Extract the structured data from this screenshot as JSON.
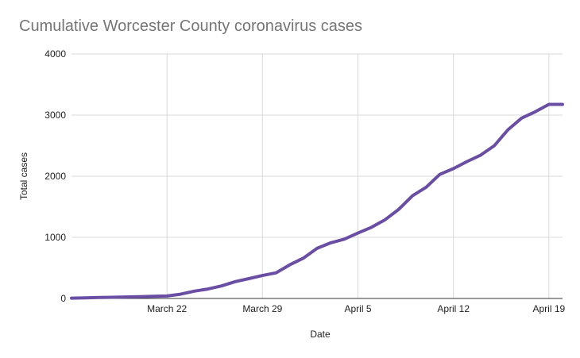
{
  "chart_data": {
    "type": "line",
    "title": "Cumulative Worcester County coronavirus cases",
    "xlabel": "Date",
    "ylabel": "Total cases",
    "ylim": [
      0,
      4000
    ],
    "y_ticks": [
      0,
      1000,
      2000,
      3000,
      4000
    ],
    "x_tick_labels": [
      "March 22",
      "March 29",
      "April 5",
      "April 12",
      "April 19"
    ],
    "x_tick_dates": [
      "2020-03-22",
      "2020-03-29",
      "2020-04-05",
      "2020-04-12",
      "2020-04-19"
    ],
    "grid": true,
    "line_color": "#6a4ea3",
    "series": [
      {
        "x": [
          "2020-03-15",
          "2020-03-16",
          "2020-03-17",
          "2020-03-18",
          "2020-03-19",
          "2020-03-20",
          "2020-03-21",
          "2020-03-22",
          "2020-03-23",
          "2020-03-24",
          "2020-03-25",
          "2020-03-26",
          "2020-03-27",
          "2020-03-28",
          "2020-03-29",
          "2020-03-30",
          "2020-03-31",
          "2020-04-01",
          "2020-04-02",
          "2020-04-03",
          "2020-04-04",
          "2020-04-05",
          "2020-04-06",
          "2020-04-07",
          "2020-04-08",
          "2020-04-09",
          "2020-04-10",
          "2020-04-11",
          "2020-04-12",
          "2020-04-13",
          "2020-04-14",
          "2020-04-15",
          "2020-04-16",
          "2020-04-17",
          "2020-04-18",
          "2020-04-19",
          "2020-04-20"
        ],
        "values": [
          5,
          10,
          15,
          20,
          25,
          30,
          35,
          40,
          70,
          120,
          155,
          205,
          275,
          325,
          375,
          420,
          550,
          660,
          820,
          910,
          970,
          1070,
          1165,
          1290,
          1460,
          1680,
          1820,
          2030,
          2125,
          2240,
          2345,
          2500,
          2760,
          2950,
          3055,
          3175,
          3175
        ]
      }
    ]
  }
}
